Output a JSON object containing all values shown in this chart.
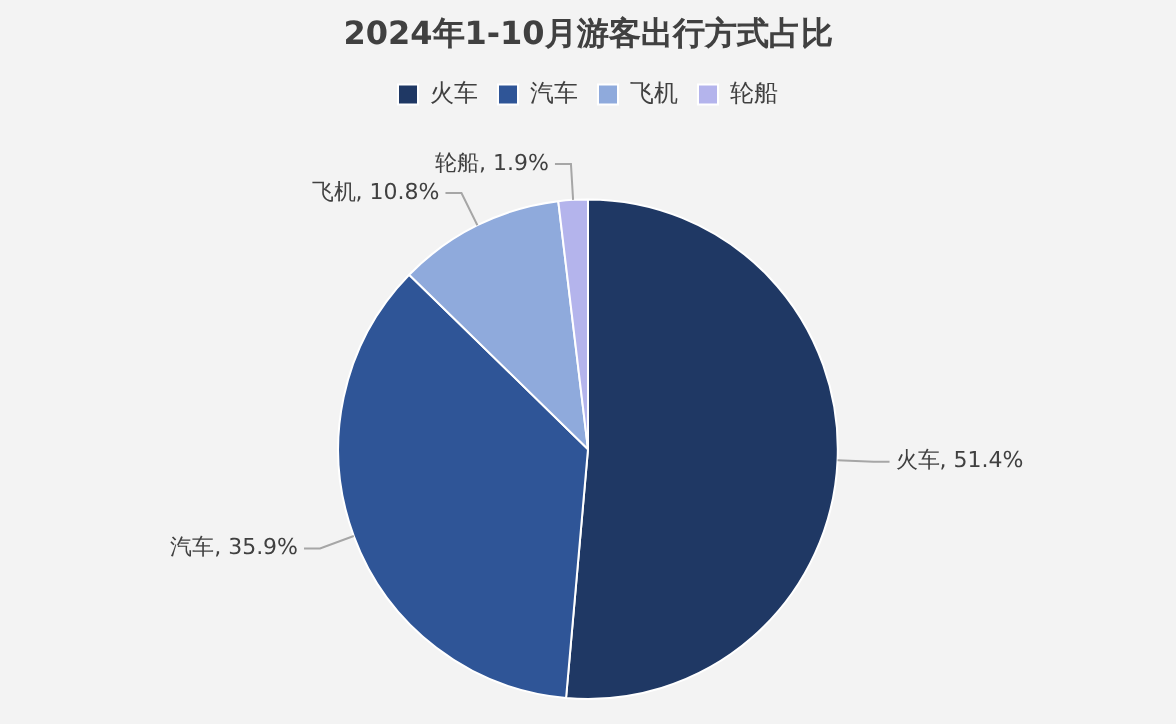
{
  "chart_data": {
    "type": "pie",
    "title": "2024年1-10月游客出行方式占比",
    "categories": [
      "火车",
      "汽车",
      "飞机",
      "轮船"
    ],
    "values": [
      51.4,
      35.9,
      10.8,
      1.9
    ],
    "colors": [
      "#1f3864",
      "#2f5597",
      "#8faadc",
      "#b4b4ec"
    ],
    "value_labels": [
      ", 51.4%",
      ", 35.9%",
      ", 10.8%",
      ", 1.9%"
    ],
    "legend": "top"
  }
}
